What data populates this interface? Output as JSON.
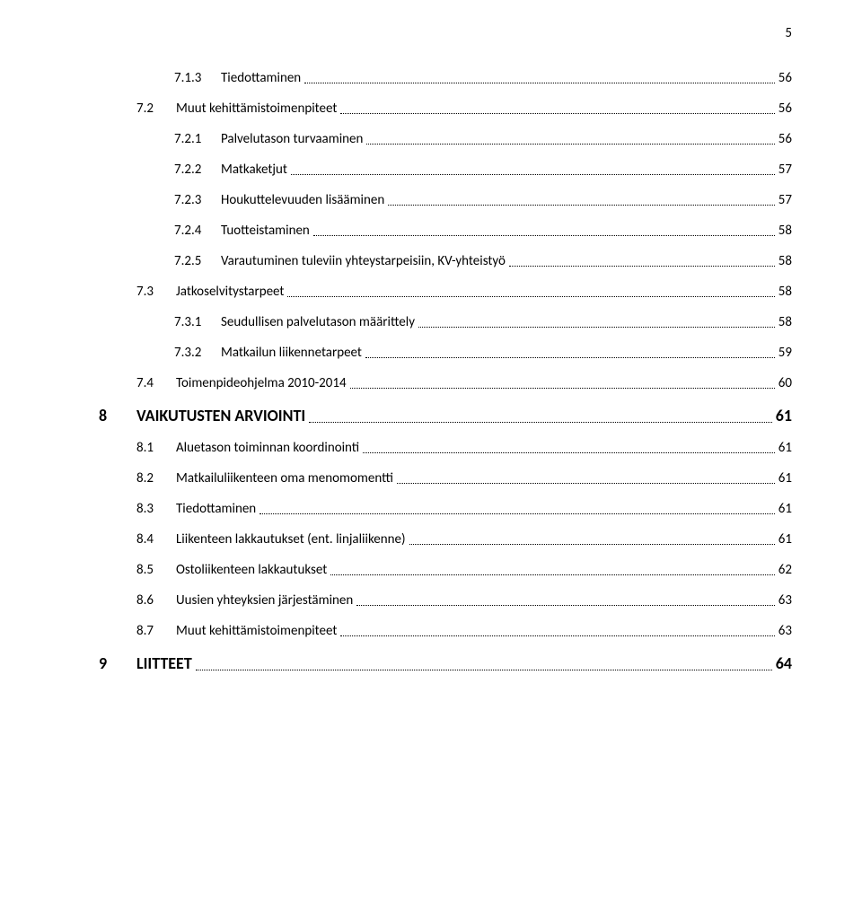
{
  "pageNumber": "5",
  "entries": [
    {
      "level": 3,
      "num": "7.1.3",
      "title": "Tiedottaminen",
      "page": "56"
    },
    {
      "level": 2,
      "num": "7.2",
      "title": "Muut kehittämistoimenpiteet",
      "page": "56"
    },
    {
      "level": 3,
      "num": "7.2.1",
      "title": "Palvelutason turvaaminen",
      "page": "56"
    },
    {
      "level": 3,
      "num": "7.2.2",
      "title": "Matkaketjut",
      "page": "57"
    },
    {
      "level": 3,
      "num": "7.2.3",
      "title": "Houkuttelevuuden lisääminen",
      "page": "57"
    },
    {
      "level": 3,
      "num": "7.2.4",
      "title": "Tuotteistaminen",
      "page": "58"
    },
    {
      "level": 3,
      "num": "7.2.5",
      "title": "Varautuminen tuleviin yhteystarpeisiin, KV-yhteistyö",
      "page": "58"
    },
    {
      "level": 2,
      "num": "7.3",
      "title": "Jatkoselvitystarpeet",
      "page": "58"
    },
    {
      "level": 3,
      "num": "7.3.1",
      "title": "Seudullisen palvelutason määrittely",
      "page": "58"
    },
    {
      "level": 3,
      "num": "7.3.2",
      "title": "Matkailun liikennetarpeet",
      "page": "59"
    },
    {
      "level": 2,
      "num": "7.4",
      "title": "Toimenpideohjelma 2010-2014",
      "page": "60"
    },
    {
      "level": 1,
      "num": "8",
      "title": "VAIKUTUSTEN ARVIOINTI",
      "page": "61"
    },
    {
      "level": 2,
      "num": "8.1",
      "title": "Aluetason toiminnan koordinointi",
      "page": "61"
    },
    {
      "level": 2,
      "num": "8.2",
      "title": "Matkailuliikenteen oma menomomentti",
      "page": "61"
    },
    {
      "level": 2,
      "num": "8.3",
      "title": "Tiedottaminen",
      "page": "61"
    },
    {
      "level": 2,
      "num": "8.4",
      "title": "Liikenteen lakkautukset (ent. linjaliikenne)",
      "page": "61"
    },
    {
      "level": 2,
      "num": "8.5",
      "title": "Ostoliikenteen lakkautukset",
      "page": "62"
    },
    {
      "level": 2,
      "num": "8.6",
      "title": "Uusien yhteyksien järjestäminen",
      "page": "63"
    },
    {
      "level": 2,
      "num": "8.7",
      "title": "Muut kehittämistoimenpiteet",
      "page": "63"
    },
    {
      "level": 1,
      "num": "9",
      "title": "LIITTEET",
      "page": "64"
    }
  ]
}
